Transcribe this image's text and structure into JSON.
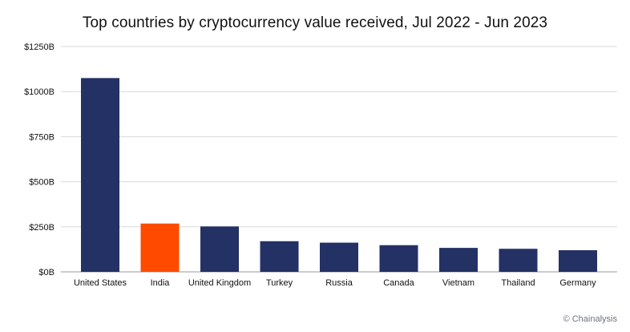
{
  "chart_data": {
    "type": "bar",
    "title": "Top countries by cryptocurrency value received, Jul 2022 - Jun 2023",
    "xlabel": "",
    "ylabel": "",
    "categories": [
      "United States",
      "India",
      "United Kingdom",
      "Turkey",
      "Russia",
      "Canada",
      "Vietnam",
      "Thailand",
      "Germany"
    ],
    "values": [
      1075,
      268,
      252,
      170,
      162,
      148,
      133,
      128,
      120
    ],
    "unit": "billion USD",
    "ylim": [
      0,
      1250
    ],
    "yticks": [
      0,
      250,
      500,
      750,
      1000,
      1250
    ],
    "ytick_labels": [
      "$0B",
      "$250B",
      "$500B",
      "$750B",
      "$1000B",
      "$1250B"
    ],
    "grid": true,
    "legend": "none",
    "colors": {
      "default": "#243165",
      "highlight": "#ff4a00"
    },
    "highlight_index": 1
  },
  "attribution": "© Chainalysis"
}
